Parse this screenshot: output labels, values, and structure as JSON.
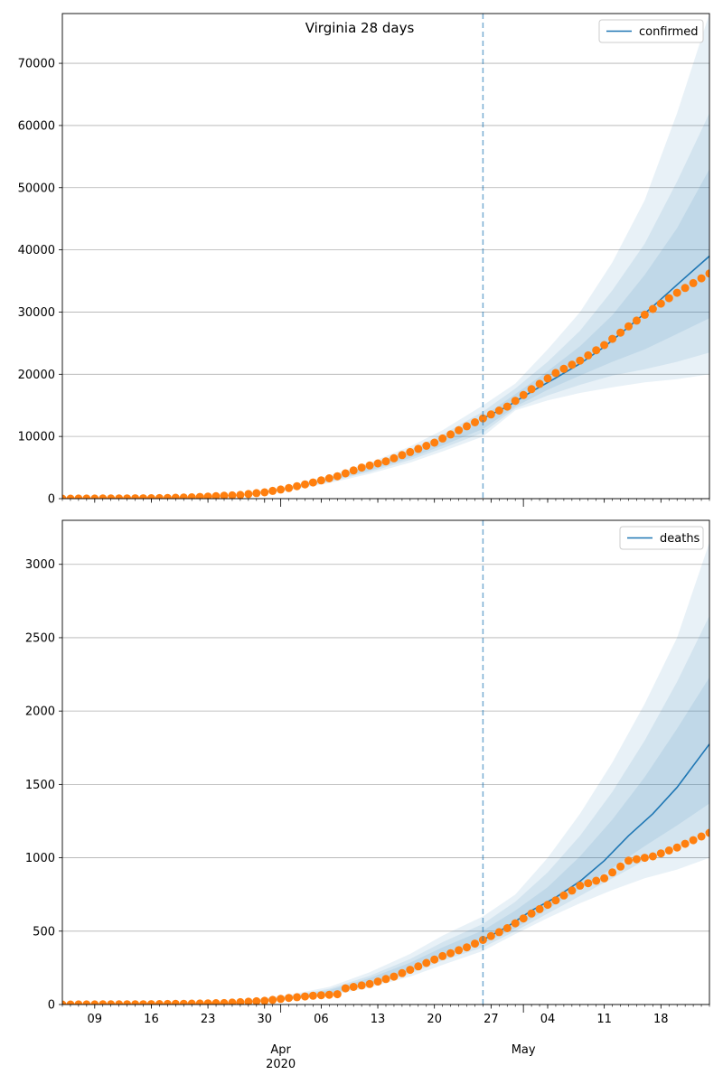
{
  "colors": {
    "line": "#1f77b4",
    "band": "#1f77b4",
    "points": "#ff7f0e",
    "grid": "#b0b0b0",
    "vline": "#1f77b4"
  },
  "chart_data": [
    {
      "type": "line",
      "title": "Virginia 28 days",
      "legend": "top-right",
      "grid": "y",
      "x_range": [
        "2020-03-05",
        "2020-05-24"
      ],
      "ylim": [
        0,
        78000
      ],
      "yticks": [
        0,
        10000,
        20000,
        30000,
        40000,
        50000,
        60000,
        70000
      ],
      "forecast_start": "2020-04-26",
      "series": [
        {
          "name": "confirmed",
          "kind": "forecast-line",
          "x": [
            "2020-04-26",
            "2020-04-29",
            "2020-05-02",
            "2020-05-05",
            "2020-05-08",
            "2020-05-11",
            "2020-05-14",
            "2020-05-17",
            "2020-05-20",
            "2020-05-24"
          ],
          "values": [
            12900,
            14800,
            17200,
            19400,
            21700,
            24400,
            27600,
            30900,
            34400,
            39000
          ]
        },
        {
          "name": "observed",
          "kind": "points",
          "x": [
            "2020-03-05",
            "2020-03-13",
            "2020-03-18",
            "2020-03-21",
            "2020-03-24",
            "2020-03-27",
            "2020-03-30",
            "2020-04-02",
            "2020-04-05",
            "2020-04-08",
            "2020-04-11",
            "2020-04-14",
            "2020-04-17",
            "2020-04-20",
            "2020-04-23",
            "2020-04-26",
            "2020-04-29",
            "2020-05-02",
            "2020-05-05",
            "2020-05-08",
            "2020-05-11",
            "2020-05-14",
            "2020-05-17",
            "2020-05-20",
            "2020-05-24"
          ],
          "values": [
            0,
            40,
            100,
            220,
            390,
            600,
            1020,
            1700,
            2600,
            3600,
            5000,
            6000,
            7500,
            9000,
            11000,
            12900,
            14800,
            17600,
            20200,
            22200,
            24700,
            27700,
            30500,
            33100,
            36200
          ]
        }
      ],
      "bands": [
        {
          "x": [
            "2020-03-28",
            "2020-04-02",
            "2020-04-07",
            "2020-04-12",
            "2020-04-17",
            "2020-04-21",
            "2020-04-26",
            "2020-04-30",
            "2020-05-04",
            "2020-05-08",
            "2020-05-12",
            "2020-05-16",
            "2020-05-20",
            "2020-05-24"
          ],
          "lower": [
            500,
            1300,
            2500,
            4000,
            5800,
            7600,
            10000,
            14200,
            15800,
            17000,
            17900,
            18700,
            19200,
            20000
          ],
          "upper": [
            800,
            2000,
            3700,
            5800,
            8400,
            11000,
            15000,
            18500,
            24000,
            30000,
            38000,
            48000,
            62000,
            78000
          ]
        },
        {
          "x": [
            "2020-03-28",
            "2020-04-02",
            "2020-04-07",
            "2020-04-12",
            "2020-04-17",
            "2020-04-21",
            "2020-04-26",
            "2020-04-30",
            "2020-05-04",
            "2020-05-08",
            "2020-05-12",
            "2020-05-16",
            "2020-05-20",
            "2020-05-24"
          ],
          "lower": [
            560,
            1400,
            2700,
            4300,
            6200,
            8100,
            10600,
            14500,
            16600,
            18300,
            19800,
            20800,
            22000,
            23500
          ],
          "upper": [
            740,
            1850,
            3450,
            5450,
            7900,
            10300,
            14000,
            17700,
            22000,
            27000,
            33500,
            41000,
            51000,
            62000
          ]
        },
        {
          "x": [
            "2020-03-28",
            "2020-04-02",
            "2020-04-07",
            "2020-04-12",
            "2020-04-17",
            "2020-04-21",
            "2020-04-26",
            "2020-04-30",
            "2020-05-04",
            "2020-05-08",
            "2020-05-12",
            "2020-05-16",
            "2020-05-20",
            "2020-05-24"
          ],
          "lower": [
            600,
            1480,
            2850,
            4550,
            6550,
            8550,
            11200,
            14800,
            17500,
            19800,
            22000,
            24000,
            26500,
            29000
          ],
          "upper": [
            700,
            1750,
            3250,
            5150,
            7450,
            9700,
            13200,
            16800,
            20500,
            24500,
            29500,
            36000,
            43500,
            53000
          ]
        }
      ]
    },
    {
      "type": "line",
      "legend": "top-right",
      "grid": "y",
      "x_range": [
        "2020-03-05",
        "2020-05-24"
      ],
      "ylim": [
        0,
        3300
      ],
      "yticks": [
        0,
        500,
        1000,
        1500,
        2000,
        2500,
        3000
      ],
      "forecast_start": "2020-04-26",
      "series": [
        {
          "name": "deaths",
          "kind": "forecast-line",
          "x": [
            "2020-04-26",
            "2020-04-29",
            "2020-05-02",
            "2020-05-05",
            "2020-05-08",
            "2020-05-11",
            "2020-05-14",
            "2020-05-17",
            "2020-05-20",
            "2020-05-24"
          ],
          "values": [
            440,
            530,
            640,
            730,
            840,
            980,
            1150,
            1300,
            1480,
            1775
          ]
        },
        {
          "name": "observed",
          "kind": "points",
          "x": [
            "2020-03-05",
            "2020-03-15",
            "2020-03-20",
            "2020-03-25",
            "2020-03-30",
            "2020-04-02",
            "2020-04-05",
            "2020-04-08",
            "2020-04-09",
            "2020-04-12",
            "2020-04-15",
            "2020-04-18",
            "2020-04-21",
            "2020-04-24",
            "2020-04-26",
            "2020-04-29",
            "2020-05-02",
            "2020-05-05",
            "2020-05-08",
            "2020-05-11",
            "2020-05-14",
            "2020-05-17",
            "2020-05-20",
            "2020-05-24"
          ],
          "values": [
            0,
            2,
            5,
            10,
            25,
            45,
            60,
            70,
            110,
            140,
            190,
            260,
            330,
            390,
            440,
            520,
            620,
            710,
            810,
            860,
            980,
            1010,
            1070,
            1170
          ]
        }
      ],
      "bands": [
        {
          "x": [
            "2020-03-28",
            "2020-04-02",
            "2020-04-07",
            "2020-04-12",
            "2020-04-17",
            "2020-04-21",
            "2020-04-26",
            "2020-04-30",
            "2020-05-04",
            "2020-05-08",
            "2020-05-12",
            "2020-05-16",
            "2020-05-20",
            "2020-05-24"
          ],
          "lower": [
            15,
            30,
            60,
            115,
            190,
            270,
            365,
            480,
            590,
            690,
            780,
            860,
            920,
            1000
          ],
          "upper": [
            30,
            65,
            120,
            220,
            345,
            470,
            600,
            750,
            1000,
            1300,
            1650,
            2050,
            2500,
            3150
          ]
        },
        {
          "x": [
            "2020-03-28",
            "2020-04-02",
            "2020-04-07",
            "2020-04-12",
            "2020-04-17",
            "2020-04-21",
            "2020-04-26",
            "2020-04-30",
            "2020-05-04",
            "2020-05-08",
            "2020-05-12",
            "2020-05-16",
            "2020-05-20",
            "2020-05-24"
          ],
          "lower": [
            17,
            34,
            67,
            130,
            210,
            300,
            390,
            500,
            620,
            740,
            860,
            980,
            1080,
            1180
          ],
          "upper": [
            27,
            57,
            107,
            195,
            310,
            425,
            550,
            700,
            900,
            1150,
            1450,
            1800,
            2200,
            2650
          ]
        },
        {
          "x": [
            "2020-03-28",
            "2020-04-02",
            "2020-04-07",
            "2020-04-12",
            "2020-04-17",
            "2020-04-21",
            "2020-04-26",
            "2020-04-30",
            "2020-05-04",
            "2020-05-08",
            "2020-05-12",
            "2020-05-16",
            "2020-05-20",
            "2020-05-24"
          ],
          "lower": [
            19,
            38,
            74,
            142,
            228,
            325,
            415,
            520,
            650,
            790,
            930,
            1080,
            1220,
            1370
          ],
          "upper": [
            25,
            52,
            98,
            180,
            285,
            390,
            505,
            640,
            800,
            1010,
            1260,
            1550,
            1880,
            2230
          ]
        }
      ]
    }
  ],
  "x_axis": {
    "ticks": [
      {
        "date": "2020-03-09",
        "label": "09"
      },
      {
        "date": "2020-03-16",
        "label": "16"
      },
      {
        "date": "2020-03-23",
        "label": "23"
      },
      {
        "date": "2020-03-30",
        "label": "30"
      },
      {
        "date": "2020-04-06",
        "label": "06"
      },
      {
        "date": "2020-04-13",
        "label": "13"
      },
      {
        "date": "2020-04-20",
        "label": "20"
      },
      {
        "date": "2020-04-27",
        "label": "27"
      },
      {
        "date": "2020-05-04",
        "label": "04"
      },
      {
        "date": "2020-05-11",
        "label": "11"
      },
      {
        "date": "2020-05-18",
        "label": "18"
      }
    ],
    "months": [
      {
        "date": "2020-04-01",
        "label": "Apr",
        "year": "2020"
      },
      {
        "date": "2020-05-01",
        "label": "May",
        "year": ""
      }
    ]
  }
}
